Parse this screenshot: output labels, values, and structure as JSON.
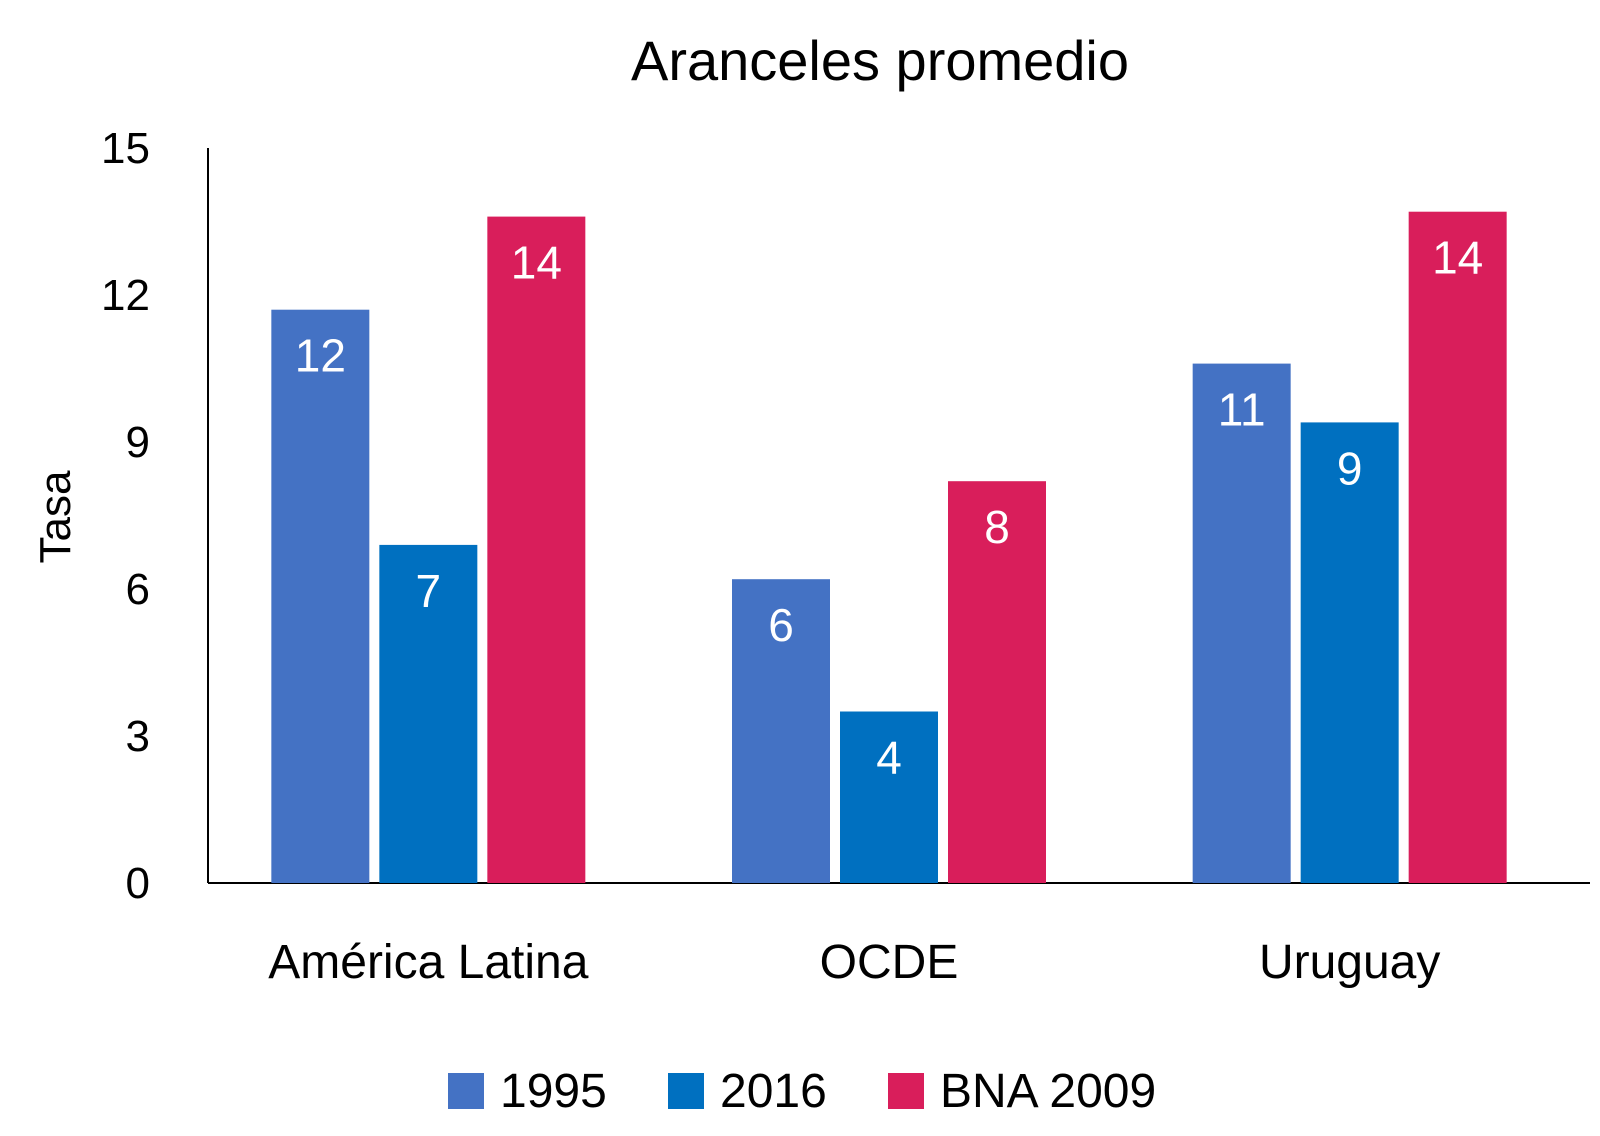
{
  "chart_data": {
    "type": "bar",
    "title": "Aranceles promedio",
    "xlabel": "",
    "ylabel": "Tasa",
    "ylim": [
      0,
      15
    ],
    "yticks": [
      0,
      3,
      6,
      9,
      12,
      15
    ],
    "grid": false,
    "legend_position": "bottom",
    "categories": [
      "América Latina",
      "OCDE",
      "Uruguay"
    ],
    "series": [
      {
        "name": "1995",
        "color": "#4472C4",
        "values": [
          11.7,
          6.2,
          10.6
        ],
        "labels": [
          "12",
          "6",
          "11"
        ]
      },
      {
        "name": "2016",
        "color": "#0070C0",
        "values": [
          6.9,
          3.5,
          9.4
        ],
        "labels": [
          "7",
          "4",
          "9"
        ]
      },
      {
        "name": "BNA 2009",
        "color": "#D91E5B",
        "values": [
          13.6,
          8.2,
          13.7
        ],
        "labels": [
          "14",
          "8",
          "14"
        ]
      }
    ]
  }
}
